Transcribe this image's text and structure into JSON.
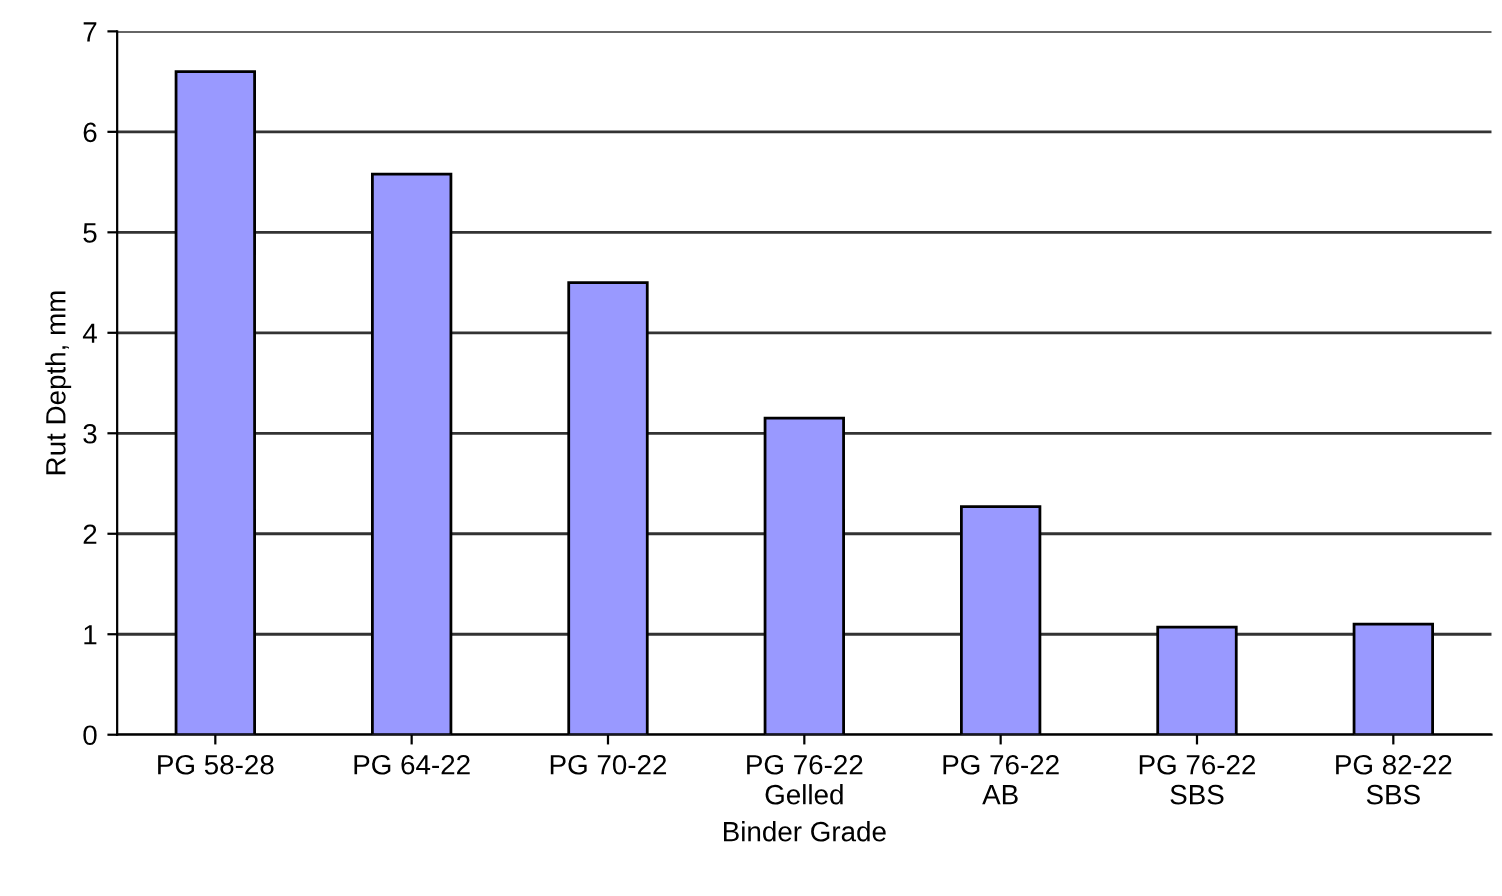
{
  "chart_data": {
    "type": "bar",
    "xlabel": "Binder Grade",
    "ylabel": "Rut Depth, mm",
    "categories": [
      "PG 58-28",
      "PG 64-22",
      "PG 70-22",
      "PG 76-22\nGelled",
      "PG 76-22\nAB",
      "PG 76-22\nSBS",
      "PG 82-22\nSBS"
    ],
    "values": [
      6.6,
      5.58,
      4.5,
      3.15,
      2.27,
      1.07,
      1.1
    ],
    "color": "#9999ff",
    "ylim": [
      0,
      7
    ],
    "yticks": [
      0,
      1,
      2,
      3,
      4,
      5,
      6,
      7
    ],
    "grid": "y"
  }
}
